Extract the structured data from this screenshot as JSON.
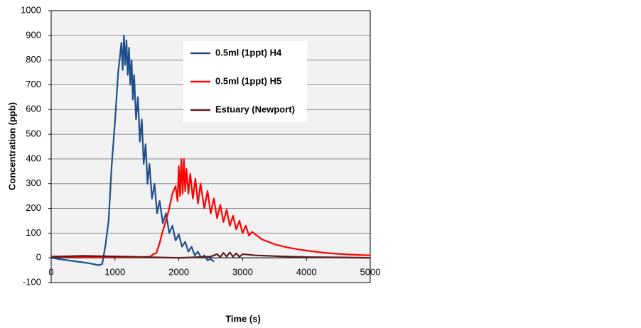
{
  "chart_data": {
    "type": "line",
    "xlabel": "Time (s)",
    "ylabel": "Concentration (ppb)",
    "xlim": [
      0,
      5000
    ],
    "xticks": [
      0,
      1000,
      2000,
      3000,
      4000,
      5000
    ],
    "ylim": [
      -100,
      1000
    ],
    "yticks": [
      -100,
      0,
      100,
      200,
      300,
      400,
      500,
      600,
      700,
      800,
      900,
      1000
    ],
    "grid": true,
    "legend": "upper right",
    "series": [
      {
        "name": "0.5ml (1ppt) H4",
        "color": "#1f4e8c",
        "x": [
          0,
          200,
          400,
          600,
          750,
          800,
          850,
          900,
          950,
          1000,
          1050,
          1080,
          1100,
          1120,
          1140,
          1160,
          1180,
          1200,
          1220,
          1240,
          1260,
          1280,
          1300,
          1330,
          1360,
          1390,
          1420,
          1450,
          1480,
          1510,
          1540,
          1580,
          1620,
          1660,
          1700,
          1750,
          1800,
          1850,
          1900,
          1950,
          2000,
          2050,
          2100,
          2150,
          2200,
          2250,
          2300,
          2350,
          2400,
          2450,
          2500,
          2550
        ],
        "values": [
          0,
          -8,
          -15,
          -22,
          -30,
          -25,
          50,
          150,
          380,
          550,
          750,
          820,
          870,
          760,
          900,
          780,
          880,
          740,
          850,
          700,
          800,
          640,
          740,
          560,
          650,
          470,
          560,
          380,
          460,
          300,
          380,
          240,
          300,
          180,
          230,
          140,
          180,
          100,
          130,
          70,
          95,
          45,
          65,
          25,
          45,
          10,
          25,
          0,
          10,
          -10,
          -5,
          -15
        ]
      },
      {
        "name": "0.5ml (1ppt) H5",
        "color": "#ff0000",
        "x": [
          0,
          500,
          1000,
          1400,
          1550,
          1600,
          1650,
          1700,
          1750,
          1800,
          1850,
          1900,
          1950,
          1980,
          2000,
          2020,
          2040,
          2060,
          2080,
          2100,
          2120,
          2150,
          2180,
          2220,
          2260,
          2300,
          2340,
          2400,
          2450,
          2500,
          2550,
          2600,
          2650,
          2700,
          2750,
          2800,
          2850,
          2900,
          2950,
          3000,
          3050,
          3100,
          3150,
          3300,
          3500,
          3700,
          3900,
          4100,
          4300,
          4500,
          4700,
          5000
        ],
        "values": [
          5,
          3,
          3,
          2,
          5,
          15,
          20,
          60,
          110,
          150,
          200,
          260,
          290,
          230,
          370,
          250,
          400,
          260,
          400,
          270,
          360,
          260,
          340,
          240,
          320,
          220,
          300,
          200,
          270,
          180,
          240,
          160,
          215,
          145,
          195,
          130,
          170,
          115,
          150,
          100,
          130,
          90,
          105,
          75,
          55,
          42,
          33,
          26,
          20,
          16,
          13,
          10
        ]
      },
      {
        "name": "Estuary (Newport)",
        "color": "#5c1a1a",
        "x": [
          0,
          500,
          1000,
          1500,
          2000,
          2500,
          2600,
          2650,
          2700,
          2750,
          2800,
          2850,
          2900,
          2950,
          3000,
          3200,
          3400,
          3600,
          4000,
          4500,
          5000
        ],
        "values": [
          5,
          8,
          6,
          3,
          0,
          5,
          15,
          3,
          20,
          5,
          22,
          5,
          18,
          4,
          15,
          10,
          8,
          6,
          3,
          2,
          0
        ]
      }
    ]
  }
}
